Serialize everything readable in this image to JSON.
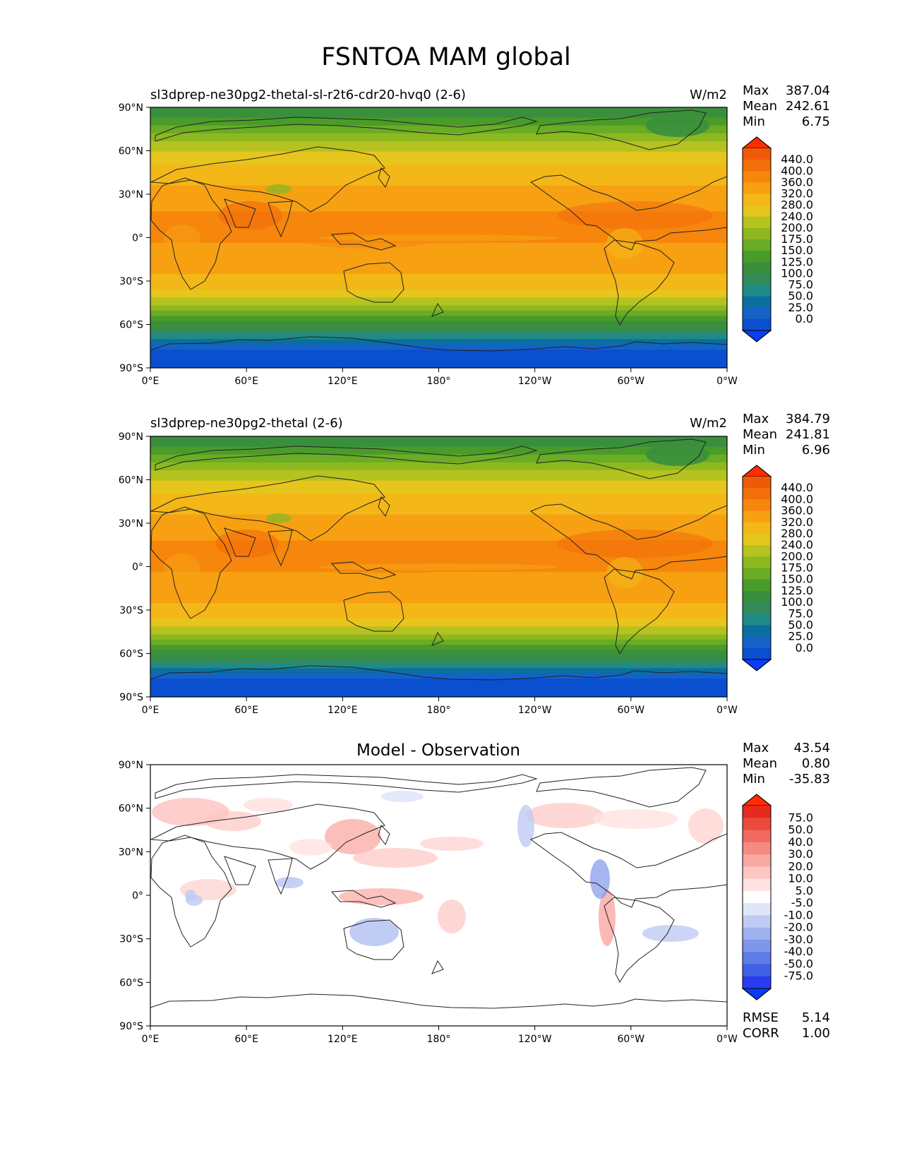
{
  "title": "FSNTOA MAM global",
  "colors": {
    "abs_levels": [
      "#0a4fcf",
      "#1462c8",
      "#0a6fa0",
      "#1f8a86",
      "#338a5a",
      "#3a8f3c",
      "#4a9c2a",
      "#6aac24",
      "#8db820",
      "#b5c21f",
      "#e6c51c",
      "#f4b718",
      "#f7a012",
      "#f6860c",
      "#f36f0a",
      "#ef5a08"
    ],
    "diff_levels": [
      "#2a3cf0",
      "#4060e8",
      "#5f7de6",
      "#7f97ea",
      "#a0b1ef",
      "#c0cbf4",
      "#e0e6fa",
      "#ffffff",
      "#ffe2e0",
      "#fdc6c2",
      "#f9a8a2",
      "#f58a82",
      "#f06a60",
      "#eb4a3e",
      "#e62a1e"
    ],
    "cbar_top_abs": "#ff2d00",
    "cbar_bottom_abs": "#0a3cf5",
    "cbar_top_diff": "#ff2d00",
    "cbar_bottom_diff": "#0a3cf5"
  },
  "axes": {
    "lat_ticks": [
      "90°N",
      "60°N",
      "30°N",
      "0°",
      "30°S",
      "60°S",
      "90°S"
    ],
    "lon_ticks": [
      "0°E",
      "60°E",
      "120°E",
      "180°",
      "120°W",
      "60°W",
      "0°W"
    ]
  },
  "panels": [
    {
      "id": "test",
      "subtitle": "sl3dprep-ne30pg2-thetal-sl-r2t6-cdr20-hvq0 (2-6)",
      "units": "W/m2",
      "center_title": "",
      "stats": {
        "max_label": "Max",
        "max": "387.04",
        "mean_label": "Mean",
        "mean": "242.61",
        "min_label": "Min",
        "min": "6.75"
      },
      "colorbar_labels": [
        "440.0",
        "400.0",
        "360.0",
        "320.0",
        "280.0",
        "240.0",
        "200.0",
        "175.0",
        "150.0",
        "125.0",
        "100.0",
        "75.0",
        "50.0",
        "25.0",
        "0.0"
      ]
    },
    {
      "id": "reference",
      "subtitle": "sl3dprep-ne30pg2-thetal (2-6)",
      "units": "W/m2",
      "center_title": "",
      "stats": {
        "max_label": "Max",
        "max": "384.79",
        "mean_label": "Mean",
        "mean": "241.81",
        "min_label": "Min",
        "min": "6.96"
      },
      "colorbar_labels": [
        "440.0",
        "400.0",
        "360.0",
        "320.0",
        "280.0",
        "240.0",
        "200.0",
        "175.0",
        "150.0",
        "125.0",
        "100.0",
        "75.0",
        "50.0",
        "25.0",
        "0.0"
      ]
    },
    {
      "id": "difference",
      "subtitle": "",
      "units": "",
      "center_title": "Model - Observation",
      "stats": {
        "max_label": "Max",
        "max": "43.54",
        "mean_label": "Mean",
        "mean": "0.80",
        "min_label": "Min",
        "min": "-35.83"
      },
      "colorbar_labels": [
        "75.0",
        "50.0",
        "40.0",
        "30.0",
        "20.0",
        "10.0",
        "5.0",
        "-5.0",
        "-10.0",
        "-20.0",
        "-30.0",
        "-40.0",
        "-50.0",
        "-75.0"
      ],
      "metrics": {
        "rmse_label": "RMSE",
        "rmse": "5.14",
        "corr_label": "CORR",
        "corr": "1.00"
      }
    }
  ]
}
